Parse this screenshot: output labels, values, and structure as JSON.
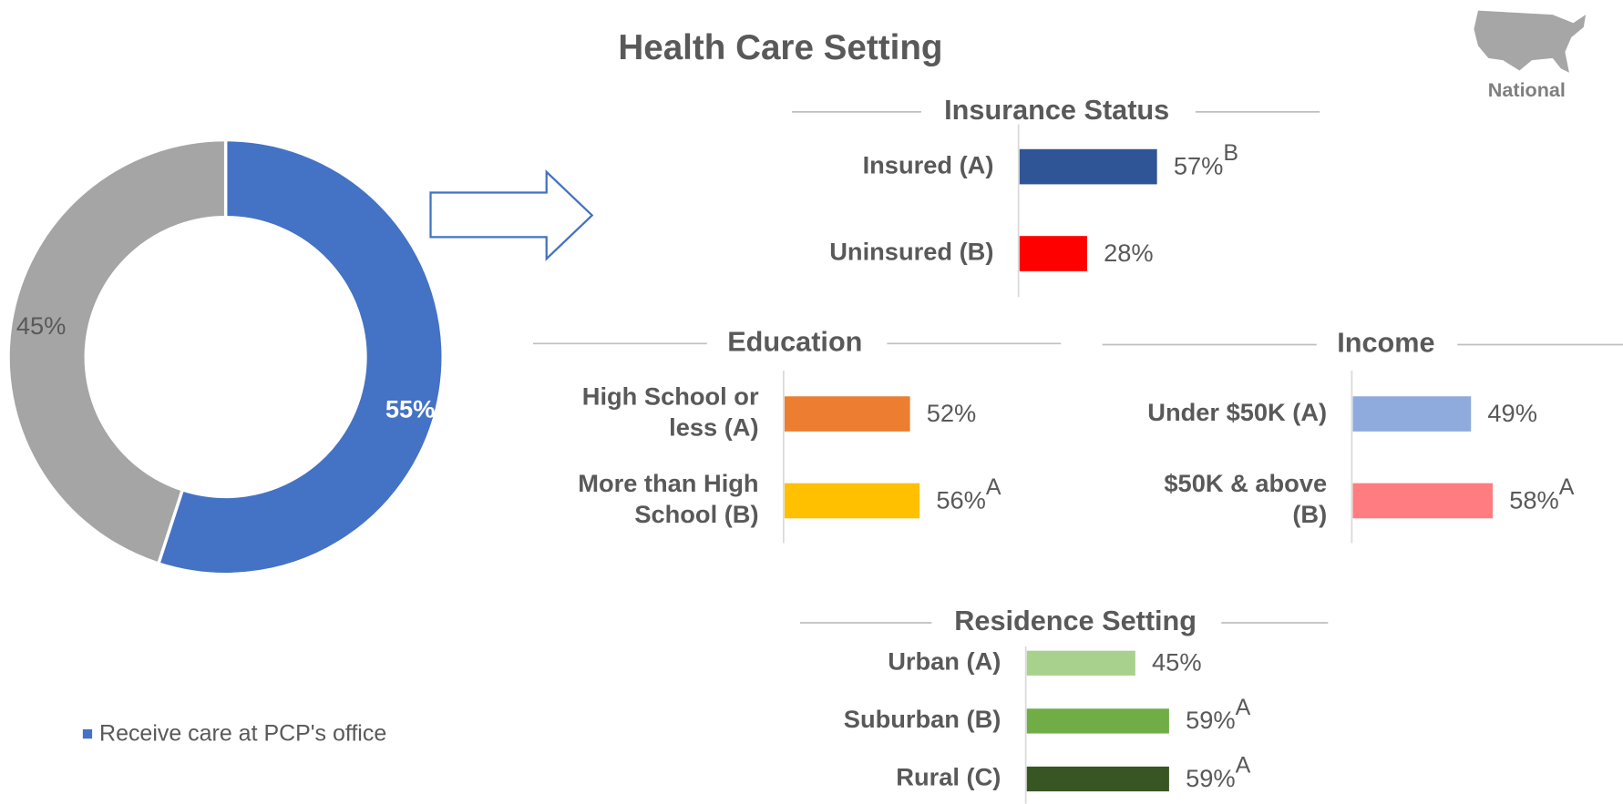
{
  "title": "Health Care Setting",
  "region_label": "National",
  "chart_data": [
    {
      "type": "donut",
      "categories": [
        "Receive care at PCP's office",
        null
      ],
      "values": [
        55,
        45
      ],
      "value_labels": [
        "55%",
        "45%"
      ],
      "colors": [
        "#4472c4",
        "#a5a5a5"
      ],
      "legend": true
    },
    {
      "type": "bar",
      "orientation": "horizontal",
      "title": "Insurance Status",
      "categories": [
        "Insured (A)",
        "Uninsured (B)"
      ],
      "values": [
        57,
        28
      ],
      "value_labels": [
        "57%",
        "28%"
      ],
      "annotations": [
        "B",
        null
      ],
      "colors": [
        "#2f5597",
        "#ff0000"
      ],
      "xlim": [
        0,
        100
      ]
    },
    {
      "type": "bar",
      "orientation": "horizontal",
      "title": "Education",
      "categories": [
        "High School or less (A)",
        "More than High School (B)"
      ],
      "values": [
        52,
        56
      ],
      "value_labels": [
        "52%",
        "56%"
      ],
      "annotations": [
        null,
        "A"
      ],
      "colors": [
        "#ed7d31",
        "#ffc000"
      ],
      "xlim": [
        0,
        100
      ]
    },
    {
      "type": "bar",
      "orientation": "horizontal",
      "title": "Income",
      "categories": [
        "Under $50K (A)",
        "$50K & above (B)"
      ],
      "values": [
        49,
        58
      ],
      "value_labels": [
        "49%",
        "58%"
      ],
      "annotations": [
        null,
        "A"
      ],
      "colors": [
        "#8faadc",
        "#ff7c80"
      ],
      "xlim": [
        0,
        100
      ]
    },
    {
      "type": "bar",
      "orientation": "horizontal",
      "title": "Residence Setting",
      "categories": [
        "Urban (A)",
        "Suburban (B)",
        "Rural (C)"
      ],
      "values": [
        45,
        59,
        59
      ],
      "value_labels": [
        "45%",
        "59%",
        "59%"
      ],
      "annotations": [
        null,
        "A",
        "A"
      ],
      "colors": [
        "#a9d18e",
        "#70ad47",
        "#375623"
      ],
      "xlim": [
        0,
        100
      ]
    }
  ]
}
